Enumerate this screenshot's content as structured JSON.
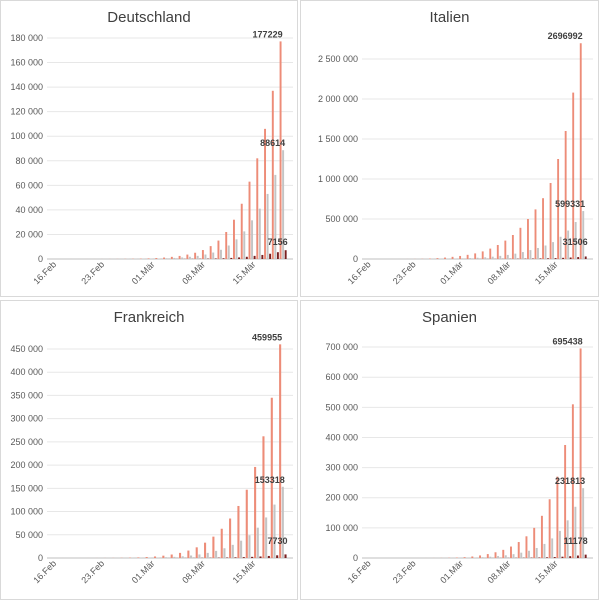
{
  "colors": {
    "series_high": "#ed8c78",
    "series_mid": "#c4c4c4",
    "series_low": "#7a1f1f",
    "gridline": "#e7e7e7",
    "axis": "#bfbfbf"
  },
  "chart_data": [
    {
      "type": "bar",
      "title": "Deutschland",
      "xticks": [
        "16.Feb",
        "23.Feb",
        "01.Mär",
        "08.Mär",
        "15.Mär"
      ],
      "yticks": [
        "0",
        "20 000",
        "40 000",
        "60 000",
        "80 000",
        "100 000",
        "120 000",
        "140 000",
        "160 000",
        "180 000"
      ],
      "ylim": [
        0,
        180000
      ],
      "grid": true,
      "series": [
        {
          "values": [
            3,
            5,
            8,
            13,
            21,
            34,
            55,
            89,
            140,
            220,
            340,
            520,
            800,
            1200,
            1750,
            2500,
            3600,
            5100,
            7300,
            10500,
            15000,
            22000,
            32000,
            45000,
            63000,
            82000,
            106000,
            137000,
            177229
          ]
        },
        {
          "values": [
            1,
            2,
            4,
            6,
            10,
            16,
            26,
            42,
            68,
            110,
            170,
            260,
            400,
            600,
            880,
            1260,
            1800,
            2550,
            3650,
            5250,
            7500,
            11000,
            16000,
            22500,
            31500,
            41000,
            53000,
            68500,
            88614
          ]
        },
        {
          "values": [
            0,
            0,
            0,
            1,
            1,
            2,
            3,
            4,
            6,
            9,
            14,
            21,
            32,
            48,
            70,
            102,
            145,
            206,
            295,
            424,
            605,
            888,
            1290,
            1810,
            2540,
            3300,
            4280,
            5530,
            7156
          ]
        }
      ],
      "data_labels": [
        "177229",
        "88614",
        "7156"
      ]
    },
    {
      "type": "bar",
      "title": "Italien",
      "xticks": [
        "16.Feb",
        "23.Feb",
        "01.Mär",
        "08.Mär",
        "15.Mär"
      ],
      "yticks": [
        "0",
        "500 000",
        "1 000 000",
        "1 500 000",
        "2 000 000",
        "2 500 000"
      ],
      "ylim": [
        0,
        2800000
      ],
      "grid": true,
      "series": [
        {
          "values": [
            10,
            30,
            80,
            200,
            500,
            1200,
            2800,
            6000,
            11000,
            18000,
            27000,
            38000,
            52000,
            70000,
            95000,
            130000,
            175000,
            230000,
            300000,
            390000,
            500000,
            620000,
            760000,
            950000,
            1250000,
            1600000,
            2080000,
            2696992
          ]
        },
        {
          "values": [
            2,
            7,
            18,
            45,
            110,
            270,
            620,
            1330,
            2450,
            4000,
            6000,
            8450,
            11550,
            15550,
            21100,
            28900,
            38900,
            51100,
            66700,
            86700,
            111100,
            137800,
            168900,
            211100,
            277800,
            355600,
            462200,
            599331
          ]
        },
        {
          "values": [
            0,
            0,
            1,
            2,
            6,
            14,
            33,
            70,
            129,
            210,
            315,
            444,
            607,
            817,
            1110,
            1520,
            2040,
            2690,
            3500,
            4550,
            5840,
            7240,
            8870,
            11100,
            14600,
            18700,
            24300,
            31506
          ]
        }
      ],
      "data_labels": [
        "2696992",
        "599331",
        "31506"
      ]
    },
    {
      "type": "bar",
      "title": "Frankreich",
      "xticks": [
        "16.Feb",
        "23.Feb",
        "01.Mär",
        "08.Mär",
        "15.Mär"
      ],
      "yticks": [
        "0",
        "50 000",
        "100 000",
        "150 000",
        "200 000",
        "250 000",
        "300 000",
        "350 000",
        "400 000",
        "450 000"
      ],
      "ylim": [
        0,
        465000
      ],
      "grid": true,
      "series": [
        {
          "values": [
            12,
            20,
            35,
            60,
            100,
            170,
            290,
            480,
            800,
            1300,
            2100,
            3300,
            5000,
            7500,
            11000,
            16000,
            23000,
            33000,
            46000,
            63000,
            85000,
            112000,
            147000,
            196000,
            262000,
            345000,
            459955
          ]
        },
        {
          "values": [
            4,
            7,
            12,
            20,
            33,
            57,
            97,
            160,
            267,
            433,
            700,
            1100,
            1670,
            2500,
            3670,
            5330,
            7670,
            11000,
            15300,
            21000,
            28300,
            37300,
            49000,
            65300,
            87300,
            115000,
            153318
          ]
        },
        {
          "values": [
            0,
            0,
            1,
            1,
            2,
            3,
            5,
            8,
            13,
            22,
            35,
            55,
            84,
            126,
            185,
            269,
            387,
            555,
            773,
            1060,
            1430,
            1880,
            2470,
            3290,
            4400,
            5800,
            7730
          ]
        }
      ],
      "data_labels": [
        "459955",
        "153318",
        "7730"
      ]
    },
    {
      "type": "bar",
      "title": "Spanien",
      "xticks": [
        "16.Feb",
        "23.Feb",
        "01.Mär",
        "08.Mär",
        "15.Mär"
      ],
      "yticks": [
        "0",
        "100 000",
        "200 000",
        "300 000",
        "400 000",
        "500 000",
        "600 000",
        "700 000"
      ],
      "ylim": [
        0,
        740000
      ],
      "grid": true,
      "series": [
        {
          "values": [
            1,
            3,
            6,
            12,
            25,
            50,
            100,
            200,
            400,
            800,
            1500,
            2800,
            5000,
            8500,
            13000,
            19000,
            27000,
            38000,
            53000,
            72000,
            100000,
            140000,
            195000,
            270000,
            375000,
            510000,
            695438
          ]
        },
        {
          "values": [
            0,
            1,
            2,
            4,
            8,
            17,
            33,
            67,
            133,
            267,
            500,
            933,
            1670,
            2830,
            4330,
            6330,
            9000,
            12700,
            17700,
            24000,
            33300,
            46700,
            65000,
            90000,
            125000,
            170000,
            231813
          ]
        },
        {
          "values": [
            0,
            0,
            0,
            0,
            0,
            1,
            2,
            3,
            6,
            13,
            24,
            45,
            80,
            137,
            209,
            305,
            434,
            611,
            852,
            1160,
            1610,
            2250,
            3140,
            4340,
            6030,
            8200,
            11178
          ]
        }
      ],
      "data_labels": [
        "695438",
        "231813",
        "11178"
      ]
    }
  ]
}
